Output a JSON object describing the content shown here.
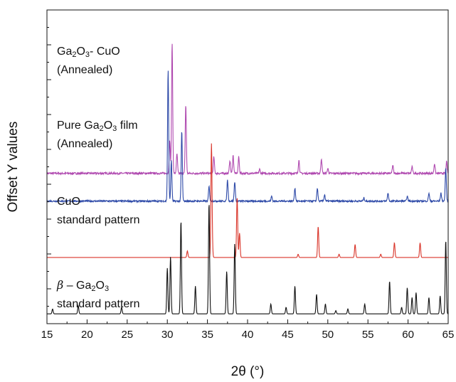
{
  "chart_data": {
    "type": "line",
    "xlabel": "2θ (°)",
    "ylabel": "Offset Y values",
    "xlim": [
      15,
      65
    ],
    "x_ticks": [
      15,
      20,
      25,
      30,
      35,
      40,
      45,
      50,
      55,
      60,
      65
    ],
    "grid": false,
    "legend": "none",
    "y_minor_ticks": 18,
    "series": [
      {
        "color": "#b04ab0",
        "label_lines": [
          [
            {
              "t": "Ga"
            },
            {
              "t": "2",
              "sub": true
            },
            {
              "t": "O"
            },
            {
              "t": "3",
              "sub": true
            },
            {
              "t": "- CuO"
            }
          ],
          [
            {
              "t": "(Annealed)"
            }
          ]
        ],
        "baseline": 8.6,
        "noise": 0.06,
        "peaks": [
          {
            "x": 30.6,
            "h": 8.0
          },
          {
            "x": 30.3,
            "h": 2.0
          },
          {
            "x": 31.2,
            "h": 1.2
          },
          {
            "x": 32.3,
            "h": 4.2
          },
          {
            "x": 35.8,
            "h": 1.0
          },
          {
            "x": 37.8,
            "h": 0.8
          },
          {
            "x": 38.2,
            "h": 1.1
          },
          {
            "x": 38.9,
            "h": 1.0
          },
          {
            "x": 41.5,
            "h": 0.25
          },
          {
            "x": 46.4,
            "h": 0.8
          },
          {
            "x": 49.2,
            "h": 0.9
          },
          {
            "x": 50.0,
            "h": 0.3
          },
          {
            "x": 58.1,
            "h": 0.5
          },
          {
            "x": 60.5,
            "h": 0.4
          },
          {
            "x": 63.3,
            "h": 0.6
          },
          {
            "x": 64.8,
            "h": 0.7
          }
        ]
      },
      {
        "color": "#2e4aa8",
        "label_lines": [
          [
            {
              "t": "Pure Ga"
            },
            {
              "t": "2",
              "sub": true
            },
            {
              "t": "O"
            },
            {
              "t": "3",
              "sub": true
            },
            {
              "t": " film"
            }
          ],
          [
            {
              "t": "(Annealed)"
            }
          ]
        ],
        "baseline": 6.9,
        "noise": 0.05,
        "peaks": [
          {
            "x": 30.1,
            "h": 8.0
          },
          {
            "x": 30.5,
            "h": 2.5
          },
          {
            "x": 31.8,
            "h": 4.3
          },
          {
            "x": 35.2,
            "h": 0.9
          },
          {
            "x": 37.5,
            "h": 1.3
          },
          {
            "x": 38.4,
            "h": 1.2
          },
          {
            "x": 43.0,
            "h": 0.3
          },
          {
            "x": 45.9,
            "h": 0.8
          },
          {
            "x": 48.7,
            "h": 0.8
          },
          {
            "x": 49.6,
            "h": 0.4
          },
          {
            "x": 54.5,
            "h": 0.2
          },
          {
            "x": 57.5,
            "h": 0.5
          },
          {
            "x": 59.9,
            "h": 0.3
          },
          {
            "x": 62.6,
            "h": 0.5
          },
          {
            "x": 64.1,
            "h": 0.5
          },
          {
            "x": 64.7,
            "h": 2.0
          }
        ]
      },
      {
        "color": "#d9352a",
        "label_lines": [
          [
            {
              "t": "CuO"
            }
          ],
          [
            {
              "t": "standard pattern"
            }
          ]
        ],
        "baseline": 3.45,
        "noise": 0.0,
        "peaks": [
          {
            "x": 32.5,
            "h": 0.4
          },
          {
            "x": 35.5,
            "h": 6.8
          },
          {
            "x": 35.6,
            "h": 0.5
          },
          {
            "x": 38.7,
            "h": 3.7
          },
          {
            "x": 39.0,
            "h": 1.5
          },
          {
            "x": 46.3,
            "h": 0.2
          },
          {
            "x": 48.8,
            "h": 1.9
          },
          {
            "x": 51.4,
            "h": 0.2
          },
          {
            "x": 53.4,
            "h": 0.8
          },
          {
            "x": 56.6,
            "h": 0.2
          },
          {
            "x": 58.3,
            "h": 0.9
          },
          {
            "x": 61.5,
            "h": 0.9
          }
        ]
      },
      {
        "color": "#111111",
        "label_lines": [
          [
            {
              "t": "β",
              "italic": true
            },
            {
              "t": " – Ga"
            },
            {
              "t": "2",
              "sub": true
            },
            {
              "t": "O"
            },
            {
              "t": "3",
              "sub": true
            }
          ],
          [
            {
              "t": "standard pattern"
            }
          ]
        ],
        "baseline": 0.0,
        "noise": 0.0,
        "peaks": [
          {
            "x": 15.7,
            "h": 0.3
          },
          {
            "x": 18.9,
            "h": 0.5
          },
          {
            "x": 24.3,
            "h": 0.4
          },
          {
            "x": 30.0,
            "h": 2.8
          },
          {
            "x": 30.4,
            "h": 3.5
          },
          {
            "x": 31.7,
            "h": 5.7
          },
          {
            "x": 33.5,
            "h": 1.7
          },
          {
            "x": 35.2,
            "h": 6.8
          },
          {
            "x": 37.4,
            "h": 2.6
          },
          {
            "x": 38.4,
            "h": 4.3
          },
          {
            "x": 42.9,
            "h": 0.6
          },
          {
            "x": 44.8,
            "h": 0.4
          },
          {
            "x": 45.9,
            "h": 1.7
          },
          {
            "x": 48.6,
            "h": 1.2
          },
          {
            "x": 49.7,
            "h": 0.6
          },
          {
            "x": 51.0,
            "h": 0.2
          },
          {
            "x": 52.5,
            "h": 0.3
          },
          {
            "x": 54.6,
            "h": 0.6
          },
          {
            "x": 57.7,
            "h": 2.0
          },
          {
            "x": 59.2,
            "h": 0.4
          },
          {
            "x": 59.9,
            "h": 1.6
          },
          {
            "x": 60.5,
            "h": 1.0
          },
          {
            "x": 61.0,
            "h": 1.3
          },
          {
            "x": 62.6,
            "h": 1.0
          },
          {
            "x": 64.0,
            "h": 1.1
          },
          {
            "x": 64.7,
            "h": 4.5
          }
        ]
      }
    ]
  }
}
